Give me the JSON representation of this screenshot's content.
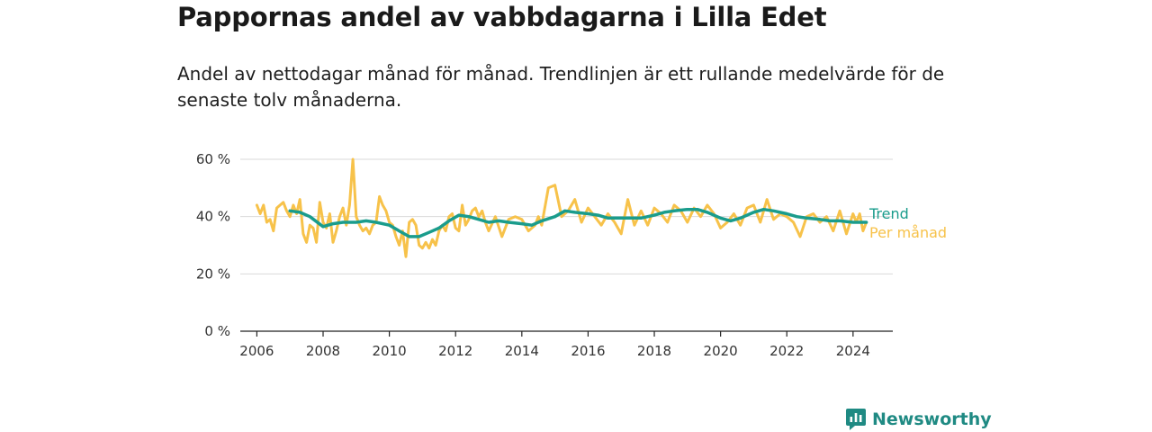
{
  "title": "Pappornas andel av vabbdagarna i Lilla Edet",
  "subtitle": "Andel av nettodagar månad för månad. Trendlinjen är ett rullande medelvärde för de senaste tolv månaderna.",
  "brand": {
    "name": "Newsworthy",
    "icon": "newsworthy-logo-icon",
    "color": "#1f8a83"
  },
  "chart_data": {
    "type": "line",
    "title": "Pappornas andel av vabbdagarna i Lilla Edet",
    "subtitle": "Andel av nettodagar månad för månad. Trendlinjen är ett rullande medelvärde för de senaste tolv månaderna.",
    "xlabel": "",
    "ylabel": "",
    "xlim": [
      2005.5,
      2025.2
    ],
    "ylim": [
      0,
      60
    ],
    "x_ticks": [
      2006,
      2008,
      2010,
      2012,
      2014,
      2016,
      2018,
      2020,
      2022,
      2024
    ],
    "x_tick_labels": [
      "2006",
      "2008",
      "2010",
      "2012",
      "2014",
      "2016",
      "2018",
      "2020",
      "2022",
      "2024"
    ],
    "y_ticks": [
      0,
      20,
      40,
      60
    ],
    "y_tick_labels": [
      "0 %",
      "20 %",
      "40 %",
      "60 %"
    ],
    "grid": "horizontal",
    "legend": "right-end-labels",
    "series": [
      {
        "name": "Trend",
        "color": "#1a9c8c",
        "x": [
          2007.0,
          2007.3,
          2007.6,
          2008.0,
          2008.3,
          2008.6,
          2009.0,
          2009.3,
          2009.6,
          2010.0,
          2010.3,
          2010.6,
          2010.9,
          2011.2,
          2011.5,
          2011.8,
          2012.1,
          2012.4,
          2012.7,
          2013.0,
          2013.3,
          2013.6,
          2014.0,
          2014.3,
          2014.6,
          2015.0,
          2015.3,
          2015.6,
          2016.0,
          2016.3,
          2016.6,
          2017.0,
          2017.3,
          2017.6,
          2018.0,
          2018.3,
          2018.6,
          2019.0,
          2019.3,
          2019.6,
          2020.0,
          2020.3,
          2020.6,
          2021.0,
          2021.3,
          2021.6,
          2022.0,
          2022.3,
          2022.6,
          2023.0,
          2023.3,
          2023.6,
          2024.0,
          2024.4
        ],
        "y": [
          42,
          41.5,
          40,
          36.5,
          37.5,
          38,
          38,
          38.5,
          38,
          37,
          35,
          33,
          33,
          34.5,
          36,
          38.5,
          40.5,
          40,
          39,
          38,
          38.5,
          38,
          37.5,
          37,
          38.5,
          40,
          42,
          41.5,
          41,
          40.5,
          39.5,
          39.5,
          39.5,
          39.5,
          40.5,
          41.5,
          42,
          42.5,
          42.5,
          41.5,
          39.5,
          38.5,
          39.5,
          41.5,
          42.5,
          42,
          41,
          40,
          39.5,
          39,
          38.5,
          38.5,
          38,
          38
        ]
      },
      {
        "name": "Per månad",
        "color": "#f7c24a",
        "x": [
          2006.0,
          2006.1,
          2006.2,
          2006.3,
          2006.4,
          2006.5,
          2006.6,
          2006.8,
          2006.9,
          2007.0,
          2007.1,
          2007.2,
          2007.3,
          2007.4,
          2007.5,
          2007.6,
          2007.7,
          2007.8,
          2007.9,
          2008.0,
          2008.1,
          2008.2,
          2008.3,
          2008.4,
          2008.5,
          2008.6,
          2008.7,
          2008.8,
          2008.9,
          2009.0,
          2009.1,
          2009.2,
          2009.3,
          2009.4,
          2009.5,
          2009.6,
          2009.7,
          2009.8,
          2009.9,
          2010.0,
          2010.1,
          2010.2,
          2010.3,
          2010.4,
          2010.5,
          2010.6,
          2010.7,
          2010.8,
          2010.9,
          2011.0,
          2011.1,
          2011.2,
          2011.3,
          2011.4,
          2011.5,
          2011.6,
          2011.7,
          2011.8,
          2011.9,
          2012.0,
          2012.1,
          2012.2,
          2012.3,
          2012.4,
          2012.5,
          2012.6,
          2012.7,
          2012.8,
          2012.9,
          2013.0,
          2013.2,
          2013.4,
          2013.6,
          2013.8,
          2014.0,
          2014.2,
          2014.4,
          2014.5,
          2014.6,
          2014.8,
          2015.0,
          2015.2,
          2015.4,
          2015.6,
          2015.8,
          2016.0,
          2016.2,
          2016.4,
          2016.6,
          2016.8,
          2017.0,
          2017.2,
          2017.4,
          2017.6,
          2017.8,
          2018.0,
          2018.2,
          2018.4,
          2018.6,
          2018.8,
          2019.0,
          2019.2,
          2019.4,
          2019.6,
          2019.8,
          2020.0,
          2020.2,
          2020.4,
          2020.6,
          2020.8,
          2021.0,
          2021.2,
          2021.4,
          2021.6,
          2021.8,
          2022.0,
          2022.2,
          2022.4,
          2022.6,
          2022.8,
          2023.0,
          2023.2,
          2023.4,
          2023.6,
          2023.8,
          2024.0,
          2024.1,
          2024.2,
          2024.3,
          2024.4
        ],
        "y": [
          44,
          41,
          44,
          38,
          39,
          35,
          43,
          45,
          42,
          40,
          44,
          41,
          46,
          34,
          31,
          37,
          36,
          31,
          45,
          38,
          36,
          41,
          31,
          35,
          40,
          43,
          37,
          44,
          60,
          40,
          37,
          35,
          36,
          34,
          37,
          38,
          47,
          44,
          42,
          38,
          37,
          33,
          30,
          35,
          26,
          38,
          39,
          37,
          30,
          29,
          31,
          29,
          32,
          30,
          35,
          37,
          35,
          40,
          41,
          36,
          35,
          44,
          37,
          39,
          42,
          43,
          40,
          42,
          38,
          35,
          40,
          33,
          39,
          40,
          39,
          35,
          37,
          40,
          37,
          50,
          51,
          40,
          42,
          46,
          38,
          43,
          40,
          37,
          41,
          38,
          34,
          46,
          37,
          42,
          37,
          43,
          41,
          38,
          44,
          42,
          38,
          43,
          40,
          44,
          41,
          36,
          38,
          41,
          37,
          43,
          44,
          38,
          46,
          39,
          41,
          40,
          38,
          33,
          40,
          41,
          38,
          40,
          35,
          42,
          34,
          41,
          38,
          41,
          35,
          38
        ]
      }
    ]
  }
}
